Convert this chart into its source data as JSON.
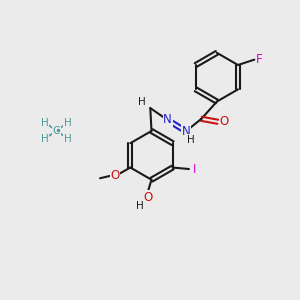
{
  "background_color": "#ebebeb",
  "bond_color": "#1a1a1a",
  "line_width": 1.5,
  "atom_colors": {
    "C": "#1a1a1a",
    "H": "#1a1a1a",
    "N": "#2020cc",
    "O": "#cc1111",
    "F": "#cc00cc",
    "I": "#cc00cc",
    "methane": "#4a9a9a"
  },
  "font_size": 8.5,
  "small_font_size": 7.5
}
